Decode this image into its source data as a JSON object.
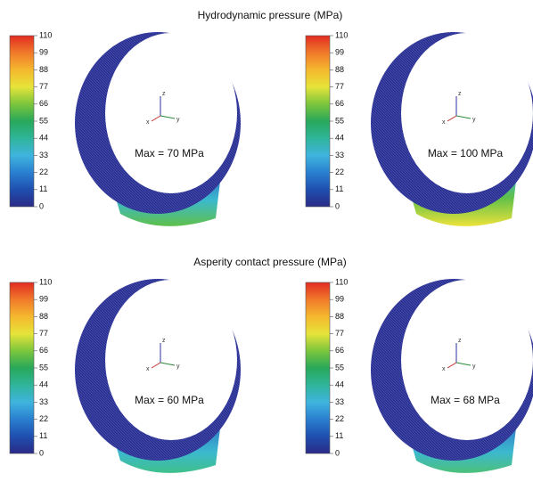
{
  "sections": [
    {
      "title": "Hydrodynamic pressure (MPa)",
      "panels": [
        {
          "annotation": "Max = 70 MPa"
        },
        {
          "annotation": "Max = 100 MPa"
        }
      ]
    },
    {
      "title": "Asperity contact pressure (MPa)",
      "panels": [
        {
          "annotation": "Max = 60 MPa"
        },
        {
          "annotation": "Max = 68 MPa"
        }
      ]
    }
  ],
  "colorbar": {
    "ticks": [
      0,
      11,
      22,
      33,
      44,
      55,
      66,
      77,
      88,
      99,
      110
    ]
  },
  "axes": {
    "labels": [
      "x",
      "y",
      "z"
    ]
  }
}
